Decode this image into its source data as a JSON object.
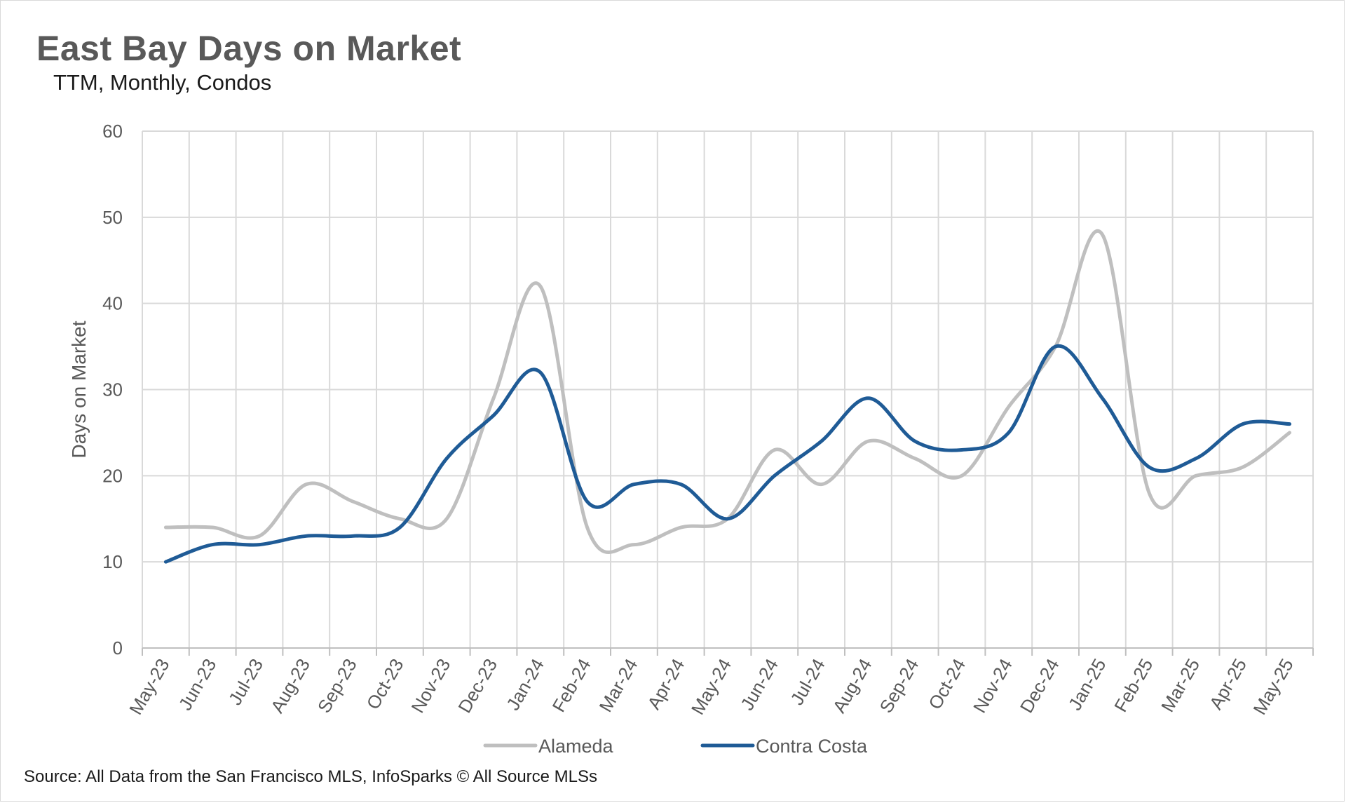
{
  "chart_data": {
    "type": "line",
    "title": "East Bay Days on Market",
    "subtitle": "TTM, Monthly, Condos",
    "xlabel": "",
    "ylabel": "Days on Market",
    "ylim": [
      0,
      60
    ],
    "yticks": [
      0,
      10,
      20,
      30,
      40,
      50,
      60
    ],
    "grid": true,
    "legend_position": "bottom",
    "categories": [
      "May-23",
      "Jun-23",
      "Jul-23",
      "Aug-23",
      "Sep-23",
      "Oct-23",
      "Nov-23",
      "Dec-23",
      "Jan-24",
      "Feb-24",
      "Mar-24",
      "Apr-24",
      "May-24",
      "Jun-24",
      "Jul-24",
      "Aug-24",
      "Sep-24",
      "Oct-24",
      "Nov-24",
      "Dec-24",
      "Jan-25",
      "Feb-25",
      "Mar-25",
      "Apr-25",
      "May-25"
    ],
    "series": [
      {
        "name": "Alameda",
        "color": "#bfbfbf",
        "values": [
          14,
          14,
          13,
          19,
          17,
          15,
          15,
          29,
          42,
          14,
          12,
          14,
          15,
          23,
          19,
          24,
          22,
          20,
          28,
          35,
          48,
          18,
          20,
          21,
          25
        ]
      },
      {
        "name": "Contra Costa",
        "color": "#1f5b96",
        "values": [
          10,
          12,
          12,
          13,
          13,
          14,
          22,
          27,
          32,
          17,
          19,
          19,
          15,
          20,
          24,
          29,
          24,
          23,
          25,
          35,
          29,
          21,
          22,
          26,
          26
        ]
      }
    ]
  },
  "source": "Source: All Data from the San Francisco MLS, InfoSparks © All Source MLSs"
}
